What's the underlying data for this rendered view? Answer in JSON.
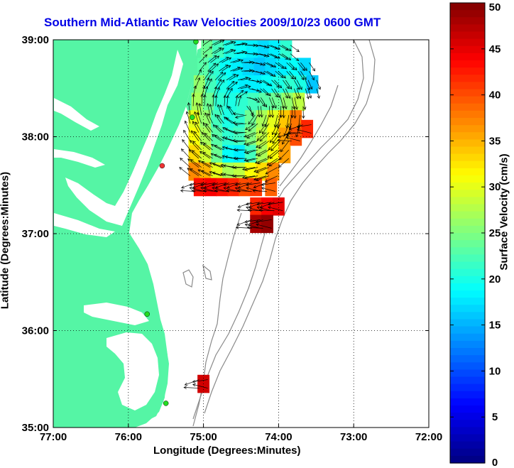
{
  "map": {
    "title": "Southern Mid-Atlantic Raw Velocities 2009/10/23 0600 GMT",
    "xlabel": "Longitude (Degrees:Minutes)",
    "ylabel": "Latitude (Degrees:Minutes)",
    "x_ticks": [
      "77:00",
      "76:00",
      "75:00",
      "74:00",
      "73:00",
      "72:00"
    ],
    "y_ticks": [
      "39:00",
      "38:00",
      "37:00",
      "36:00",
      "35:00"
    ],
    "lon_range": [
      -77,
      -72
    ],
    "lat_range": [
      35,
      39
    ],
    "grid": true
  },
  "colorbar": {
    "label": "Surface Velocity (cm/s)",
    "ticks": [
      "50",
      "45",
      "40",
      "35",
      "30",
      "25",
      "20",
      "15",
      "10",
      "5",
      "0"
    ],
    "min": 0,
    "max": 50
  },
  "colors": {
    "land": "#55f5a5",
    "water": "#ffffff",
    "title": "#0000e6",
    "bathymetry": "#8a8a8a",
    "station_active": "#22dd22",
    "station_alt": "#ee3333"
  },
  "chart_data": {
    "type": "heatmap",
    "title": "Southern Mid-Atlantic Raw Velocities 2009/10/23 0600 GMT",
    "xlabel": "Longitude (Degrees:Minutes)",
    "ylabel": "Latitude (Degrees:Minutes)",
    "xlim": [
      -77,
      -72
    ],
    "ylim": [
      35,
      39
    ],
    "colorbar_label": "Surface Velocity (cm/s)",
    "colorbar_range": [
      0,
      50
    ],
    "stations": [
      {
        "lon": -75.1,
        "lat": 38.98,
        "status": "active"
      },
      {
        "lon": -75.15,
        "lat": 38.2,
        "status": "active"
      },
      {
        "lon": -75.55,
        "lat": 37.7,
        "status": "alt"
      },
      {
        "lon": -75.75,
        "lat": 36.17,
        "status": "active"
      },
      {
        "lon": -75.5,
        "lat": 35.25,
        "status": "active"
      }
    ],
    "cells": [
      {
        "lon": -74.95,
        "lat": 38.9,
        "v": 24
      },
      {
        "lon": -74.8,
        "lat": 38.9,
        "v": 22
      },
      {
        "lon": -74.65,
        "lat": 38.9,
        "v": 20
      },
      {
        "lon": -74.5,
        "lat": 38.9,
        "v": 19
      },
      {
        "lon": -74.35,
        "lat": 38.9,
        "v": 18
      },
      {
        "lon": -74.2,
        "lat": 38.9,
        "v": 17
      },
      {
        "lon": -74.05,
        "lat": 38.9,
        "v": 18
      },
      {
        "lon": -73.9,
        "lat": 38.9,
        "v": 21
      },
      {
        "lon": -75.0,
        "lat": 38.72,
        "v": 23
      },
      {
        "lon": -74.85,
        "lat": 38.72,
        "v": 21
      },
      {
        "lon": -74.7,
        "lat": 38.72,
        "v": 19
      },
      {
        "lon": -74.55,
        "lat": 38.72,
        "v": 18
      },
      {
        "lon": -74.4,
        "lat": 38.72,
        "v": 17
      },
      {
        "lon": -74.25,
        "lat": 38.72,
        "v": 16
      },
      {
        "lon": -74.1,
        "lat": 38.72,
        "v": 17
      },
      {
        "lon": -73.95,
        "lat": 38.72,
        "v": 18
      },
      {
        "lon": -73.8,
        "lat": 38.72,
        "v": 19
      },
      {
        "lon": -73.65,
        "lat": 38.72,
        "v": 17
      },
      {
        "lon": -75.05,
        "lat": 38.54,
        "v": 26
      },
      {
        "lon": -74.9,
        "lat": 38.54,
        "v": 22
      },
      {
        "lon": -74.75,
        "lat": 38.54,
        "v": 20
      },
      {
        "lon": -74.6,
        "lat": 38.54,
        "v": 19
      },
      {
        "lon": -74.45,
        "lat": 38.54,
        "v": 18
      },
      {
        "lon": -74.3,
        "lat": 38.54,
        "v": 18
      },
      {
        "lon": -74.15,
        "lat": 38.54,
        "v": 19
      },
      {
        "lon": -74.0,
        "lat": 38.54,
        "v": 20
      },
      {
        "lon": -73.85,
        "lat": 38.54,
        "v": 21
      },
      {
        "lon": -73.7,
        "lat": 38.54,
        "v": 20
      },
      {
        "lon": -73.55,
        "lat": 38.54,
        "v": 16
      },
      {
        "lon": -75.08,
        "lat": 38.36,
        "v": 27
      },
      {
        "lon": -74.93,
        "lat": 38.36,
        "v": 24
      },
      {
        "lon": -74.78,
        "lat": 38.36,
        "v": 21
      },
      {
        "lon": -74.63,
        "lat": 38.36,
        "v": 20
      },
      {
        "lon": -74.48,
        "lat": 38.36,
        "v": 21
      },
      {
        "lon": -74.33,
        "lat": 38.36,
        "v": 22
      },
      {
        "lon": -74.18,
        "lat": 38.36,
        "v": 23
      },
      {
        "lon": -74.03,
        "lat": 38.36,
        "v": 24
      },
      {
        "lon": -73.88,
        "lat": 38.36,
        "v": 26
      },
      {
        "lon": -73.73,
        "lat": 38.36,
        "v": 28
      },
      {
        "lon": -75.12,
        "lat": 38.18,
        "v": 30
      },
      {
        "lon": -74.97,
        "lat": 38.18,
        "v": 26
      },
      {
        "lon": -74.82,
        "lat": 38.18,
        "v": 22
      },
      {
        "lon": -74.67,
        "lat": 38.18,
        "v": 20
      },
      {
        "lon": -74.52,
        "lat": 38.18,
        "v": 21
      },
      {
        "lon": -74.37,
        "lat": 38.18,
        "v": 24
      },
      {
        "lon": -74.22,
        "lat": 38.18,
        "v": 27
      },
      {
        "lon": -74.07,
        "lat": 38.18,
        "v": 30
      },
      {
        "lon": -73.92,
        "lat": 38.18,
        "v": 34
      },
      {
        "lon": -73.77,
        "lat": 38.18,
        "v": 38
      },
      {
        "lon": -73.62,
        "lat": 38.08,
        "v": 42
      },
      {
        "lon": -75.12,
        "lat": 38.0,
        "v": 31
      },
      {
        "lon": -74.97,
        "lat": 38.0,
        "v": 27
      },
      {
        "lon": -74.82,
        "lat": 38.0,
        "v": 23
      },
      {
        "lon": -74.67,
        "lat": 38.0,
        "v": 21
      },
      {
        "lon": -74.52,
        "lat": 38.0,
        "v": 22
      },
      {
        "lon": -74.37,
        "lat": 38.0,
        "v": 25
      },
      {
        "lon": -74.22,
        "lat": 38.0,
        "v": 28
      },
      {
        "lon": -74.07,
        "lat": 38.0,
        "v": 31
      },
      {
        "lon": -73.92,
        "lat": 38.0,
        "v": 36
      },
      {
        "lon": -73.77,
        "lat": 38.0,
        "v": 40
      },
      {
        "lon": -75.12,
        "lat": 37.82,
        "v": 33
      },
      {
        "lon": -74.97,
        "lat": 37.82,
        "v": 29
      },
      {
        "lon": -74.82,
        "lat": 37.82,
        "v": 24
      },
      {
        "lon": -74.67,
        "lat": 37.82,
        "v": 19
      },
      {
        "lon": -74.52,
        "lat": 37.82,
        "v": 18
      },
      {
        "lon": -74.37,
        "lat": 37.82,
        "v": 22
      },
      {
        "lon": -74.22,
        "lat": 37.82,
        "v": 27
      },
      {
        "lon": -74.07,
        "lat": 37.82,
        "v": 31
      },
      {
        "lon": -73.92,
        "lat": 37.82,
        "v": 36
      },
      {
        "lon": -75.12,
        "lat": 37.64,
        "v": 37
      },
      {
        "lon": -74.97,
        "lat": 37.64,
        "v": 35
      },
      {
        "lon": -74.82,
        "lat": 37.64,
        "v": 30
      },
      {
        "lon": -74.67,
        "lat": 37.64,
        "v": 27
      },
      {
        "lon": -74.52,
        "lat": 37.64,
        "v": 28
      },
      {
        "lon": -74.37,
        "lat": 37.64,
        "v": 31
      },
      {
        "lon": -74.22,
        "lat": 37.64,
        "v": 33
      },
      {
        "lon": -74.07,
        "lat": 37.64,
        "v": 37
      },
      {
        "lon": -75.05,
        "lat": 37.48,
        "v": 43
      },
      {
        "lon": -74.9,
        "lat": 37.48,
        "v": 44
      },
      {
        "lon": -74.75,
        "lat": 37.48,
        "v": 43
      },
      {
        "lon": -74.6,
        "lat": 37.48,
        "v": 42
      },
      {
        "lon": -74.45,
        "lat": 37.48,
        "v": 40
      },
      {
        "lon": -74.3,
        "lat": 37.48,
        "v": 41
      },
      {
        "lon": -74.1,
        "lat": 37.48,
        "v": 39
      },
      {
        "lon": -74.3,
        "lat": 37.28,
        "v": 42
      },
      {
        "lon": -74.15,
        "lat": 37.28,
        "v": 44
      },
      {
        "lon": -74.0,
        "lat": 37.28,
        "v": 45
      },
      {
        "lon": -74.3,
        "lat": 37.1,
        "v": 48
      },
      {
        "lon": -74.15,
        "lat": 37.1,
        "v": 49
      },
      {
        "lon": -75.0,
        "lat": 35.45,
        "v": 46
      }
    ]
  }
}
